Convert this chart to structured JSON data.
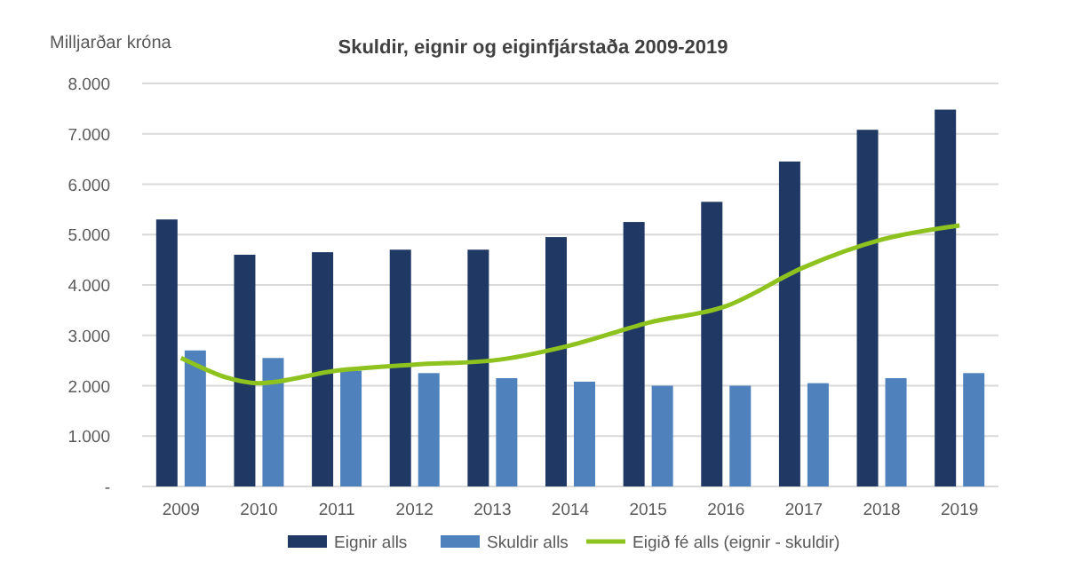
{
  "chart_data": {
    "type": "bar",
    "title": "Skuldir, eignir og eiginfjárstaða 2009-2019",
    "ylabel": "Milljarðar króna",
    "categories": [
      "2009",
      "2010",
      "2011",
      "2012",
      "2013",
      "2014",
      "2015",
      "2016",
      "2017",
      "2018",
      "2019"
    ],
    "series": [
      {
        "name": "Eignir alls",
        "color": "#1f3864",
        "values": [
          5300,
          4600,
          4650,
          4700,
          4700,
          4950,
          5250,
          5650,
          6450,
          7080,
          7480
        ]
      },
      {
        "name": "Skuldir alls",
        "color": "#4f81bd",
        "values": [
          2700,
          2550,
          2300,
          2250,
          2150,
          2080,
          2000,
          2000,
          2050,
          2150,
          2250
        ]
      },
      {
        "name": "Eigið fé alls (eignir - skuldir)",
        "type": "line",
        "color": "#8dc21f",
        "values": [
          2550,
          2050,
          2300,
          2420,
          2500,
          2800,
          3250,
          3580,
          4350,
          4900,
          5180
        ]
      }
    ],
    "ylim": [
      0,
      8000
    ],
    "yticks": [
      {
        "value": 0,
        "label": "-"
      },
      {
        "value": 1000,
        "label": "1.000"
      },
      {
        "value": 2000,
        "label": "2.000"
      },
      {
        "value": 3000,
        "label": "3.000"
      },
      {
        "value": 4000,
        "label": "4.000"
      },
      {
        "value": 5000,
        "label": "5.000"
      },
      {
        "value": 6000,
        "label": "6.000"
      },
      {
        "value": 7000,
        "label": "7.000"
      },
      {
        "value": 8000,
        "label": "8.000"
      }
    ],
    "grid": "y",
    "legend": "bottom",
    "marker": "none",
    "line_style": "solid"
  }
}
